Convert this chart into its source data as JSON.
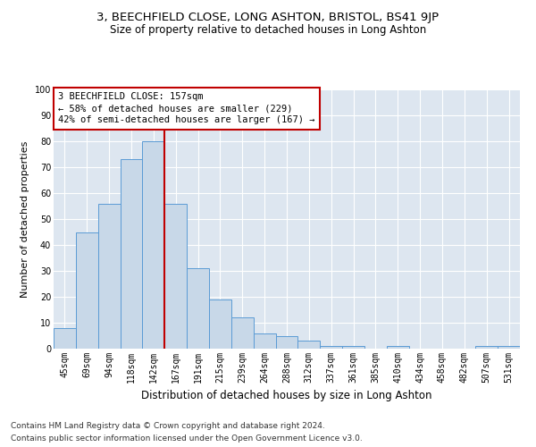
{
  "title": "3, BEECHFIELD CLOSE, LONG ASHTON, BRISTOL, BS41 9JP",
  "subtitle": "Size of property relative to detached houses in Long Ashton",
  "xlabel": "Distribution of detached houses by size in Long Ashton",
  "ylabel": "Number of detached properties",
  "categories": [
    "45sqm",
    "69sqm",
    "94sqm",
    "118sqm",
    "142sqm",
    "167sqm",
    "191sqm",
    "215sqm",
    "239sqm",
    "264sqm",
    "288sqm",
    "312sqm",
    "337sqm",
    "361sqm",
    "385sqm",
    "410sqm",
    "434sqm",
    "458sqm",
    "482sqm",
    "507sqm",
    "531sqm"
  ],
  "values": [
    8,
    45,
    56,
    73,
    80,
    56,
    31,
    19,
    12,
    6,
    5,
    3,
    1,
    1,
    0,
    1,
    0,
    0,
    0,
    1,
    1
  ],
  "bar_color": "#c8d8e8",
  "bar_edge_color": "#5b9bd5",
  "vline_x": 4.5,
  "vline_color": "#c00000",
  "ylim": [
    0,
    100
  ],
  "yticks": [
    0,
    10,
    20,
    30,
    40,
    50,
    60,
    70,
    80,
    90,
    100
  ],
  "annotation_title": "3 BEECHFIELD CLOSE: 157sqm",
  "annotation_line1": "← 58% of detached houses are smaller (229)",
  "annotation_line2": "42% of semi-detached houses are larger (167) →",
  "annotation_box_color": "#c00000",
  "footer_line1": "Contains HM Land Registry data © Crown copyright and database right 2024.",
  "footer_line2": "Contains public sector information licensed under the Open Government Licence v3.0.",
  "background_color": "#dde6f0",
  "title_fontsize": 9.5,
  "subtitle_fontsize": 8.5,
  "xlabel_fontsize": 8.5,
  "ylabel_fontsize": 8,
  "tick_fontsize": 7,
  "annotation_fontsize": 7.5,
  "footer_fontsize": 6.5
}
